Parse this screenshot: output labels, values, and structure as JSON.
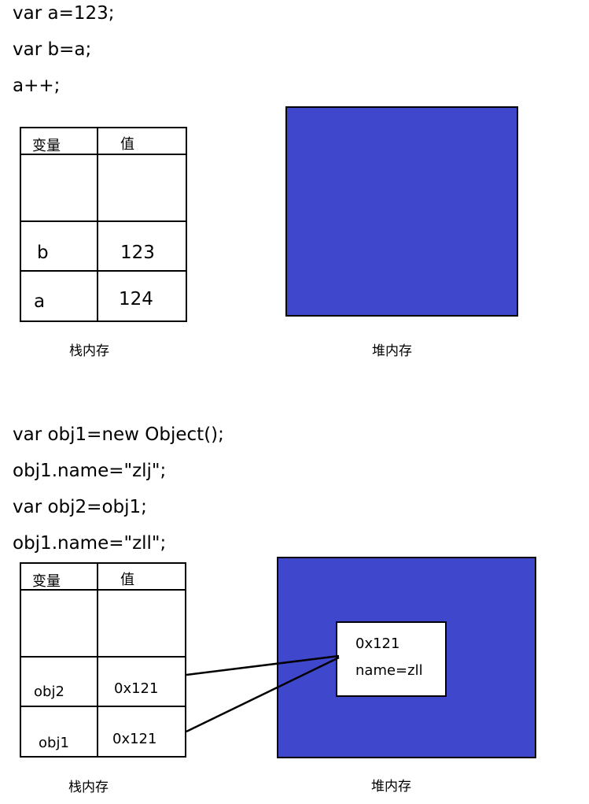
{
  "section1": {
    "code": [
      "var a=123;",
      "var b=a;",
      "a++;"
    ],
    "stack": {
      "header_var": "变量",
      "header_val": "值",
      "rows": [
        {
          "name": "b",
          "value": "123"
        },
        {
          "name": "a",
          "value": "124"
        }
      ],
      "caption": "栈内存"
    },
    "heap": {
      "caption": "堆内存"
    }
  },
  "section2": {
    "code": [
      "var obj1=new Object();",
      "obj1.name=\"zlj\";",
      "var obj2=obj1;",
      "obj1.name=\"zll\";"
    ],
    "stack": {
      "header_var": "变量",
      "header_val": "值",
      "rows": [
        {
          "name": "obj2",
          "value": "0x121"
        },
        {
          "name": "obj1",
          "value": "0x121"
        }
      ],
      "caption": "栈内存"
    },
    "heap": {
      "caption": "堆内存",
      "object": {
        "address": "0x121",
        "property": "name=zll"
      }
    }
  },
  "colors": {
    "heap_fill": "#3f48cc",
    "line": "#000000",
    "background": "#ffffff"
  }
}
